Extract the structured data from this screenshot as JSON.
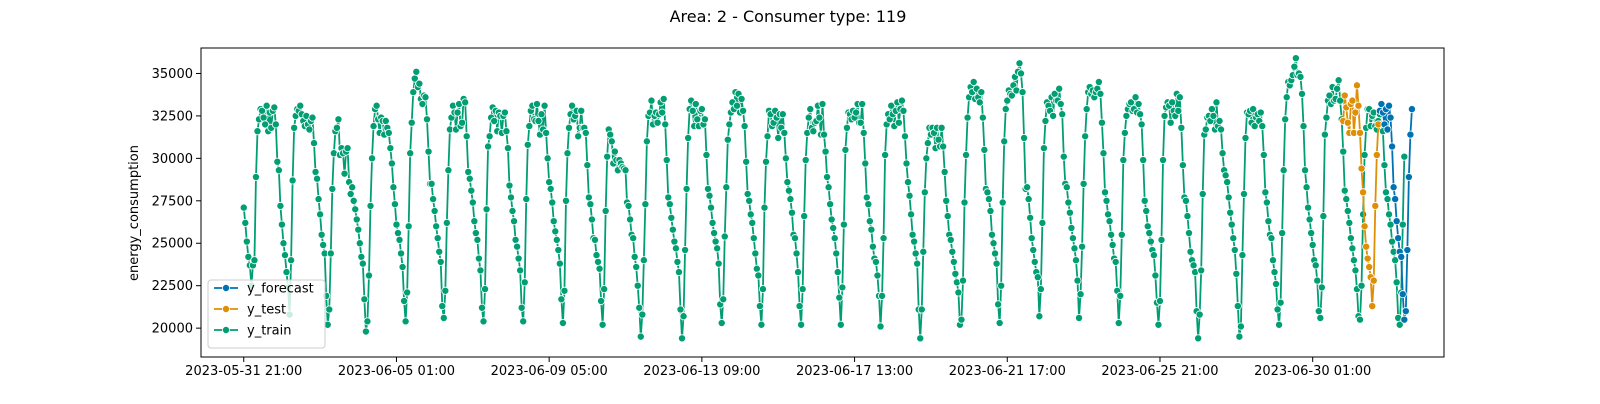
{
  "chart_data": {
    "type": "line",
    "title": "Area: 2 - Consumer type: 119",
    "xlabel": "",
    "ylabel": "energy_consumption",
    "x_start": "2023-05-31 21:00",
    "x_step_hours": 1,
    "xlim": [
      "2023-05-30 17:00",
      "2023-07-03 15:00"
    ],
    "ylim": [
      18300,
      36500
    ],
    "x_ticks": [
      "2023-05-31 21:00",
      "2023-06-05 01:00",
      "2023-06-09 05:00",
      "2023-06-13 09:00",
      "2023-06-17 13:00",
      "2023-06-21 17:00",
      "2023-06-25 21:00",
      "2023-06-30 01:00"
    ],
    "y_ticks": [
      20000,
      22500,
      25000,
      27500,
      30000,
      32500,
      35000
    ],
    "grid": false,
    "legend_position": "lower-left",
    "series": [
      {
        "name": "y_forecast",
        "color": "#0072b2",
        "start_offset": 744,
        "values": [
          32800,
          33200,
          32700,
          32000,
          32900,
          31700,
          33100,
          32400,
          30700,
          28300,
          27600,
          26300,
          25300,
          24500,
          24200,
          22000,
          20500,
          21000,
          24600,
          28900,
          31400,
          32900
        ]
      },
      {
        "name": "y_test",
        "color": "#de8f05",
        "start_offset": 720,
        "values": [
          32200,
          33700,
          33000,
          32100,
          31500,
          33200,
          33400,
          31500,
          32700,
          34300,
          33100,
          31500,
          29400,
          28000,
          26000,
          24800,
          24100,
          23600,
          23000,
          21300,
          22800,
          27200,
          30200,
          32000
        ]
      },
      {
        "name": "y_train",
        "color": "#029e73",
        "start_offset": 0,
        "values": [
          27100,
          26200,
          25100,
          24200,
          23700,
          22500,
          23700,
          24000,
          28900,
          31600,
          32300,
          32900,
          32800,
          32400,
          32000,
          33100,
          31600,
          32700,
          31800,
          32800,
          33000,
          32000,
          29800,
          29300,
          27200,
          26100,
          25000,
          24300,
          23300,
          22400,
          20800,
          24000,
          28700,
          31800,
          32500,
          32900,
          32800,
          33100,
          32600,
          32200,
          31900,
          32500,
          32000,
          31700,
          32200,
          32400,
          30900,
          29200,
          28800,
          27600,
          26700,
          25500,
          24900,
          24400,
          21900,
          20200,
          21100,
          24400,
          28200,
          30300,
          31600,
          31800,
          32300,
          30200,
          30600,
          30300,
          29100,
          30400,
          30600,
          28600,
          27900,
          28300,
          27500,
          27000,
          26400,
          25800,
          25000,
          24200,
          23800,
          21700,
          19800,
          20400,
          23100,
          27200,
          30000,
          31900,
          32900,
          33100,
          32300,
          31500,
          32400,
          32200,
          31400,
          32200,
          31800,
          31500,
          30600,
          29700,
          28300,
          27300,
          26100,
          25600,
          25200,
          24400,
          23600,
          21600,
          20400,
          22100,
          26000,
          30300,
          32100,
          33900,
          34700,
          35100,
          34200,
          34400,
          33500,
          33200,
          33700,
          33600,
          32300,
          30400,
          28500,
          28500,
          27600,
          26900,
          26000,
          25300,
          24500,
          23900,
          21300,
          20600,
          22200,
          26200,
          29300,
          31700,
          32400,
          33100,
          32700,
          31700,
          32700,
          33200,
          31900,
          32100,
          33500,
          33300,
          31300,
          29200,
          28800,
          28100,
          27400,
          26300,
          25600,
          25200,
          24100,
          23400,
          21200,
          20400,
          22300,
          27000,
          30700,
          31300,
          32400,
          33000,
          32200,
          32800,
          31600,
          32700,
          32500,
          31500,
          32500,
          32700,
          31600,
          30600,
          28400,
          27700,
          26900,
          26300,
          25200,
          24800,
          24100,
          23400,
          21200,
          20400,
          22700,
          27600,
          30800,
          31900,
          32800,
          33100,
          32300,
          32200,
          33200,
          32200,
          31400,
          32600,
          31700,
          33100,
          31500,
          30000,
          28600,
          28200,
          27400,
          26300,
          25700,
          25200,
          24600,
          23800,
          21700,
          20300,
          22200,
          27500,
          30300,
          31800,
          32600,
          33100,
          32300,
          32500,
          32800,
          31300,
          31800,
          32800,
          31800,
          31800,
          31500,
          29600,
          27700,
          27300,
          26400,
          25300,
          25200,
          24300,
          23900,
          23500,
          21600,
          20200,
          22300,
          26900,
          30100,
          31700,
          31400,
          31000,
          29700,
          30400,
          29900,
          29300,
          29900,
          29700,
          29500,
          29400,
          29300,
          27400,
          27200,
          26400,
          25500,
          25300,
          24200,
          23600,
          22500,
          21200,
          19500,
          20800,
          24000,
          27300,
          31000,
          32500,
          32700,
          33400,
          32000,
          32500,
          32700,
          32100,
          32600,
          33300,
          32700,
          33500,
          32000,
          29900,
          27700,
          27300,
          26500,
          25800,
          25100,
          24700,
          23900,
          23300,
          21100,
          19400,
          20700,
          24600,
          28200,
          31200,
          32900,
          33400,
          32800,
          31900,
          33200,
          32300,
          31900,
          32800,
          32900,
          32000,
          32300,
          30200,
          28200,
          27800,
          27100,
          26200,
          25600,
          25100,
          24700,
          23800,
          21400,
          20300,
          21700,
          25400,
          28300,
          31100,
          32000,
          32700,
          33300,
          32900,
          33900,
          33100,
          33800,
          32700,
          33500,
          32800,
          31900,
          29800,
          27900,
          27500,
          26700,
          26200,
          25300,
          24400,
          23500,
          23100,
          21300,
          20200,
          22300,
          27100,
          29800,
          31300,
          32800,
          32600,
          31900,
          32100,
          32800,
          32400,
          31200,
          32600,
          31800,
          32600,
          31500,
          30000,
          28600,
          28100,
          27600,
          26800,
          25500,
          25300,
          24400,
          23300,
          21300,
          20200,
          22300,
          26600,
          29900,
          31500,
          32400,
          32900,
          31800,
          31600,
          32100,
          32200,
          33100,
          32400,
          31400,
          33200,
          31400,
          30400,
          28900,
          28300,
          27300,
          26400,
          25900,
          25300,
          24400,
          23300,
          21800,
          20200,
          22400,
          26100,
          30500,
          31800,
          32700,
          32600,
          32300,
          32800,
          32400,
          32700,
          33200,
          32100,
          32100,
          33200,
          31500,
          29700,
          27700,
          27300,
          26300,
          25800,
          24800,
          24100,
          23900,
          23100,
          21900,
          20100,
          21900,
          25300,
          30200,
          32000,
          32600,
          32300,
          33100,
          32600,
          31900,
          32800,
          33300,
          32100,
          32900,
          33400,
          32800,
          31300,
          29700,
          28600,
          27800,
          26700,
          25500,
          25100,
          24400,
          23800,
          21100,
          19400,
          21100,
          24500,
          28000,
          30000,
          30900,
          31800,
          31400,
          31800,
          31500,
          30600,
          31800,
          31100,
          30700,
          31800,
          30700,
          29200,
          27500,
          26600,
          25500,
          25200,
          24500,
          23900,
          23200,
          22700,
          22100,
          20200,
          20500,
          22800,
          27400,
          30200,
          32400,
          33600,
          34200,
          33900,
          34500,
          33500,
          34100,
          33600,
          33300,
          33900,
          32400,
          30500,
          28200,
          28000,
          27600,
          26900,
          25500,
          25000,
          24400,
          23800,
          21400,
          20300,
          22500,
          27400,
          31000,
          32900,
          33400,
          34000,
          33800,
          33700,
          34300,
          34800,
          34000,
          35100,
          35600,
          35000,
          33900,
          31200,
          28200,
          28300,
          27600,
          26500,
          25300,
          24600,
          23900,
          23300,
          23000,
          20700,
          22300,
          26200,
          30600,
          32200,
          33300,
          33100,
          32800,
          33600,
          32500,
          33800,
          33400,
          33400,
          34100,
          33200,
          32600,
          30100,
          28500,
          28300,
          27400,
          26800,
          25900,
          25300,
          24700,
          24000,
          22800,
          20600,
          22000,
          24800,
          28500,
          31300,
          32900,
          33900,
          34200,
          33800,
          34000,
          33600,
          33900,
          34100,
          34500,
          33800,
          32100,
          30300,
          28000,
          27500,
          26700,
          26300,
          25500,
          24900,
          24100,
          23900,
          22200,
          20300,
          21900,
          25500,
          29900,
          31500,
          32500,
          32900,
          33200,
          33300,
          32800,
          32900,
          33600,
          32700,
          33200,
          32600,
          32000,
          29900,
          27500,
          26900,
          26000,
          25600,
          25100,
          24600,
          24300,
          23100,
          21500,
          20200,
          21600,
          25200,
          29900,
          32500,
          33000,
          33300,
          33100,
          32100,
          33300,
          32800,
          32500,
          33800,
          32800,
          33600,
          31800,
          29600,
          27700,
          27500,
          26600,
          25600,
          24500,
          24000,
          23700,
          23300,
          21000,
          19400,
          20800,
          23400,
          27900,
          31400,
          31700,
          32400,
          32500,
          32200,
          32900,
          32500,
          31700,
          33300,
          31900,
          32200,
          31700,
          30300,
          29300,
          29000,
          28600,
          27700,
          26800,
          26100,
          25300,
          24600,
          23200,
          21300,
          19500,
          20100,
          24300,
          27900,
          31200,
          32700,
          32600,
          32800,
          32100,
          32900,
          31900,
          32400,
          32600,
          32200,
          32700,
          31900,
          30200,
          28000,
          27400,
          26300,
          25500,
          25300,
          24000,
          23300,
          22600,
          21100,
          20200,
          21500,
          25600,
          29300,
          32300,
          33600,
          34500,
          34300,
          34600,
          34900,
          35400,
          35900,
          34900,
          35000,
          34800,
          33800,
          31900,
          29300,
          28300,
          27100,
          26400,
          25600,
          24900,
          24000,
          23700,
          22800,
          21000,
          20600,
          22400,
          26600,
          31400,
          32400,
          33400,
          33700,
          33200,
          34200,
          33400,
          33500,
          34100,
          34600,
          33400,
          32300,
          30400,
          28100,
          27600,
          26900,
          26200,
          25300,
          24700,
          24000,
          23400,
          22300,
          20700,
          20500,
          22500,
          26700,
          30200,
          31800,
          32900,
          32900,
          31900,
          32500,
          32700,
          31900,
          31700,
          32200,
          32600,
          32000,
          31600,
          29600,
          28000,
          27600,
          26700,
          26100,
          25100,
          24500,
          24000,
          22700,
          20600,
          20200,
          22100,
          26100,
          30100
        ]
      }
    ]
  }
}
